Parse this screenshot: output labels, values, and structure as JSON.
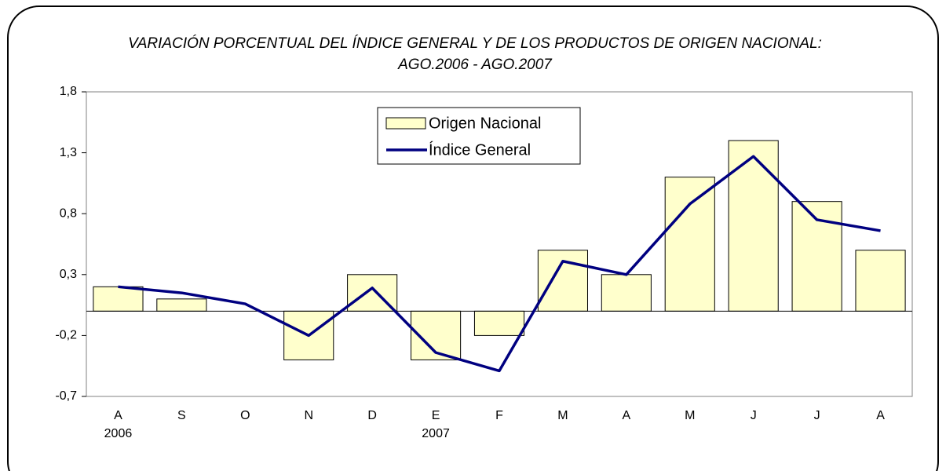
{
  "chart_data": {
    "type": "bar_line",
    "title": [
      "VARIACIÓN PORCENTUAL DEL ÍNDICE GENERAL Y DE LOS PRODUCTOS DE ORIGEN NACIONAL:",
      "AGO.2006 - AGO.2007"
    ],
    "categories": [
      "A",
      "S",
      "O",
      "N",
      "D",
      "E",
      "F",
      "M",
      "A",
      "M",
      "J",
      "J",
      "A"
    ],
    "category_groups": [
      "2006",
      null,
      null,
      null,
      null,
      "2007",
      null,
      null,
      null,
      null,
      null,
      null,
      null
    ],
    "series": [
      {
        "name": "Origen Nacional",
        "type": "bar",
        "color": "#ffffcc",
        "values": [
          0.2,
          0.1,
          0,
          -0.4,
          0.3,
          -0.4,
          -0.2,
          0.5,
          0.3,
          1.1,
          1.4,
          0.9,
          0.5
        ]
      },
      {
        "name": "Índice General",
        "type": "line",
        "color": "#000080",
        "values": [
          0.2,
          0.15,
          0.06,
          -0.2,
          0.19,
          -0.34,
          -0.49,
          0.41,
          0.3,
          0.88,
          1.27,
          0.75,
          0.66
        ]
      }
    ],
    "ylim": [
      -0.7,
      1.8
    ],
    "yticks": [
      {
        "value": -0.7,
        "label": "-0,7"
      },
      {
        "value": -0.2,
        "label": "-0,2"
      },
      {
        "value": 0.3,
        "label": "0,3"
      },
      {
        "value": 0.8,
        "label": "0,8"
      },
      {
        "value": 1.3,
        "label": "1,3"
      },
      {
        "value": 1.8,
        "label": "1,8"
      }
    ],
    "grid": false,
    "legend": "top"
  }
}
